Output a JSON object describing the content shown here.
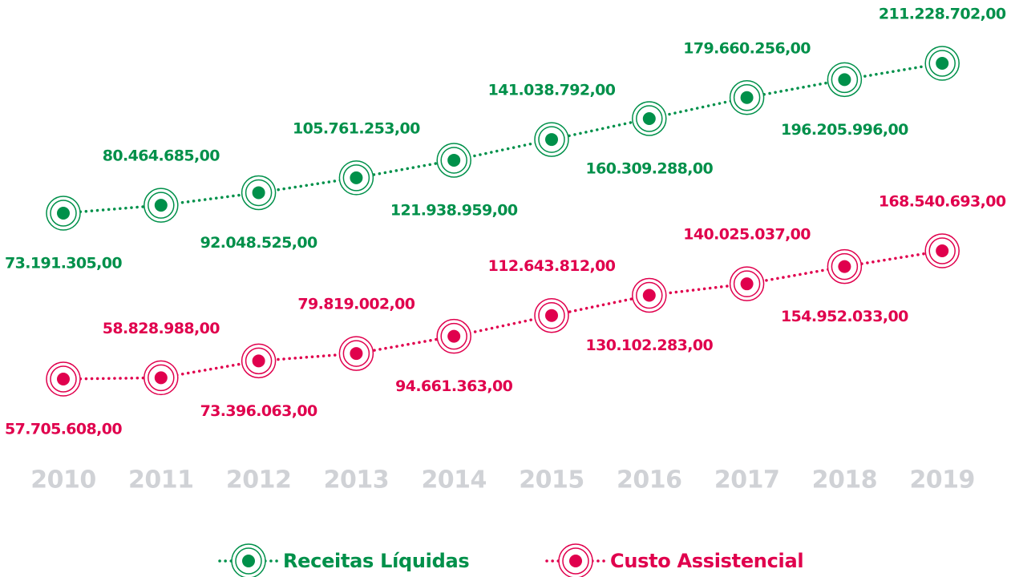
{
  "chart_data": {
    "type": "line",
    "categories": [
      "2010",
      "2011",
      "2012",
      "2013",
      "2014",
      "2015",
      "2016",
      "2017",
      "2018",
      "2019"
    ],
    "series": [
      {
        "name": "Receitas Líquidas",
        "color": "#00904a",
        "values": [
          73191305.0,
          80464685.0,
          92048525.0,
          105761253.0,
          121938959.0,
          141038792.0,
          160309288.0,
          179660256.0,
          196205996.0,
          211228702.0
        ],
        "value_labels": [
          "73.191.305,00",
          "80.464.685,00",
          "92.048.525,00",
          "105.761.253,00",
          "121.938.959,00",
          "141.038.792,00",
          "160.309.288,00",
          "179.660.256,00",
          "196.205.996,00",
          "211.228.702,00"
        ]
      },
      {
        "name": "Custo Assistencial",
        "color": "#e0004d",
        "values": [
          57705608.0,
          58828988.0,
          73396063.0,
          79819002.0,
          94661363.0,
          112643812.0,
          130102283.0,
          140025037.0,
          154952033.0,
          168540693.0
        ],
        "value_labels": [
          "57.705.608,00",
          "58.828.988,00",
          "73.396.063,00",
          "79.819.002,00",
          "94.661.363,00",
          "112.643.812,00",
          "130.102.283,00",
          "140.025.037,00",
          "154.952.033,00",
          "168.540.693,00"
        ]
      }
    ]
  }
}
